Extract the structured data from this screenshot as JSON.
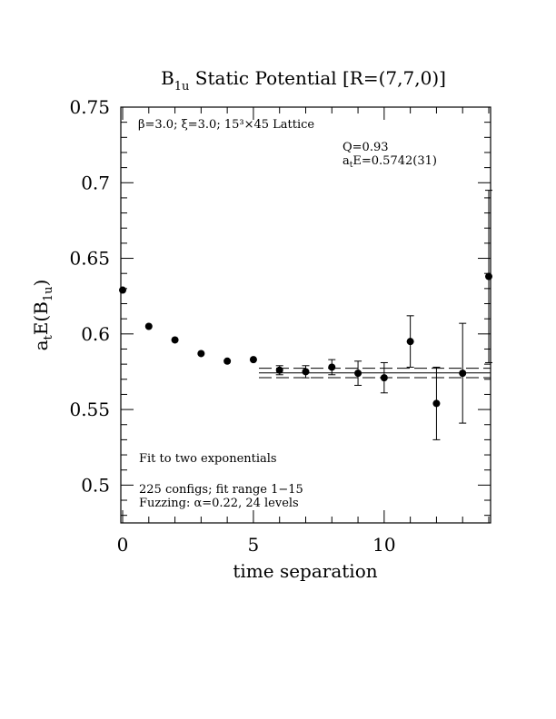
{
  "chart_data": {
    "type": "scatter",
    "title": "B₁ᵤ Static Potential [R=(7,7,0)]",
    "title_main": "B",
    "title_sub": "1u",
    "title_rest": " Static Potential [R=(7,7,0)]",
    "xlabel": "time separation",
    "ylabel": "aₜE(B₁ᵤ)",
    "ylabel_parts": {
      "a": "a",
      "t": "t",
      "E": "E(B",
      "sub": "1u",
      "close": ")"
    },
    "xlim": [
      0,
      14
    ],
    "ylim": [
      0.475,
      0.75
    ],
    "x_ticks": [
      0,
      5,
      10
    ],
    "y_ticks": [
      0.5,
      0.55,
      0.6,
      0.65,
      0.7,
      0.75
    ],
    "x_tick_labels": [
      "0",
      "5",
      "10"
    ],
    "y_tick_labels": [
      "0.5",
      "0.55",
      "0.6",
      "0.65",
      "0.7",
      "0.75"
    ],
    "points": [
      {
        "x": 0,
        "y": 0.629,
        "err": 0.0
      },
      {
        "x": 1,
        "y": 0.605,
        "err": 0.0
      },
      {
        "x": 2,
        "y": 0.596,
        "err": 0.0
      },
      {
        "x": 3,
        "y": 0.587,
        "err": 0.0
      },
      {
        "x": 4,
        "y": 0.582,
        "err": 0.0
      },
      {
        "x": 5,
        "y": 0.583,
        "err": 0.0
      },
      {
        "x": 6,
        "y": 0.576,
        "err": 0.003
      },
      {
        "x": 7,
        "y": 0.575,
        "err": 0.004
      },
      {
        "x": 8,
        "y": 0.578,
        "err": 0.005
      },
      {
        "x": 9,
        "y": 0.574,
        "err": 0.008
      },
      {
        "x": 10,
        "y": 0.571,
        "err": 0.01
      },
      {
        "x": 11,
        "y": 0.595,
        "err": 0.017
      },
      {
        "x": 12,
        "y": 0.554,
        "err": 0.024
      },
      {
        "x": 13,
        "y": 0.574,
        "err": 0.033
      },
      {
        "x": 14,
        "y": 0.638,
        "err": 0.057
      }
    ],
    "fit": {
      "value": 0.5742,
      "error": 0.0031
    },
    "annotations": {
      "params": "β=3.0; ξ=3.0; 15³×45 Lattice",
      "q": "Q=0.93",
      "energy_prefix": "a",
      "energy_sub": "t",
      "energy_rest": "E=0.5742(31)",
      "fit_method": "Fit to two exponentials",
      "configs": "225 configs; fit range 1−15",
      "fuzzing": "Fuzzing: α=0.22, 24 levels"
    }
  }
}
